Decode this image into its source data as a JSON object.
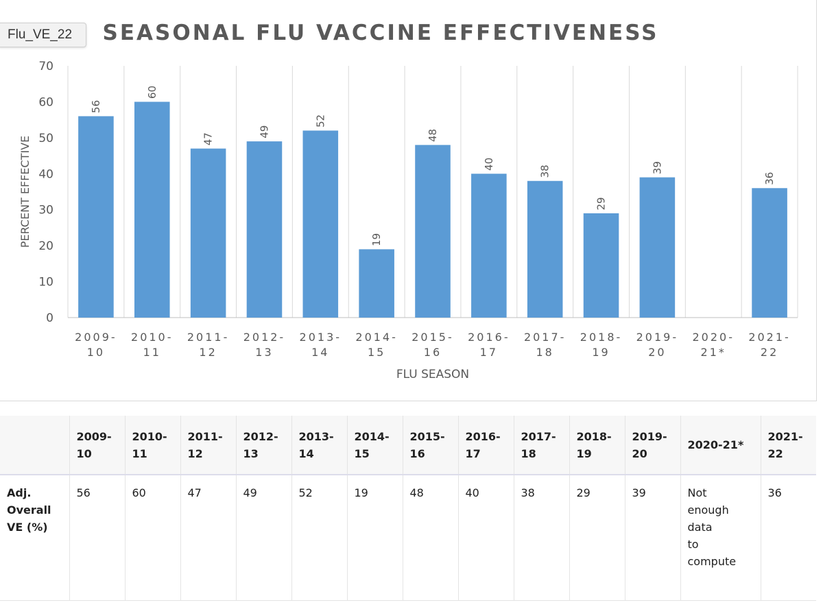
{
  "tag_label": "Flu_VE_22",
  "chart_data": {
    "type": "bar",
    "title": "SEASONAL FLU VACCINE EFFECTIVENESS",
    "xlabel": "FLU SEASON",
    "ylabel": "PERCENT EFFECTIVE",
    "ylim": [
      0,
      70
    ],
    "yticks": [
      0,
      10,
      20,
      30,
      40,
      50,
      60,
      70
    ],
    "categories": [
      [
        "2009-",
        "10"
      ],
      [
        "2010-",
        "11"
      ],
      [
        "2011-",
        "12"
      ],
      [
        "2012-",
        "13"
      ],
      [
        "2013-",
        "14"
      ],
      [
        "2014-",
        "15"
      ],
      [
        "2015-",
        "16"
      ],
      [
        "2016-",
        "17"
      ],
      [
        "2017-",
        "18"
      ],
      [
        "2018-",
        "19"
      ],
      [
        "2019-",
        "20"
      ],
      [
        "2020-",
        "21*"
      ],
      [
        "2021-",
        "22"
      ]
    ],
    "values": [
      56,
      60,
      47,
      49,
      52,
      19,
      48,
      40,
      38,
      29,
      39,
      null,
      36
    ],
    "bar_color": "#5b9bd5",
    "grid": "vertical",
    "data_labels": true
  },
  "table": {
    "row_label": "Adj.\nOverall\nVE (%)",
    "headers": [
      "2009-\n10",
      "2010-\n11",
      "2011-\n12",
      "2012-\n13",
      "2013-\n14",
      "2014-\n15",
      "2015-\n16",
      "2016-\n17",
      "2017-\n18",
      "2018-\n19",
      "2019-\n20",
      "2020-21*",
      "2021-\n22"
    ],
    "values": [
      "56",
      "60",
      "47",
      "49",
      "52",
      "19",
      "48",
      "40",
      "38",
      "29",
      "39",
      "Not\nenough\ndata\nto\ncompute",
      "36"
    ]
  }
}
